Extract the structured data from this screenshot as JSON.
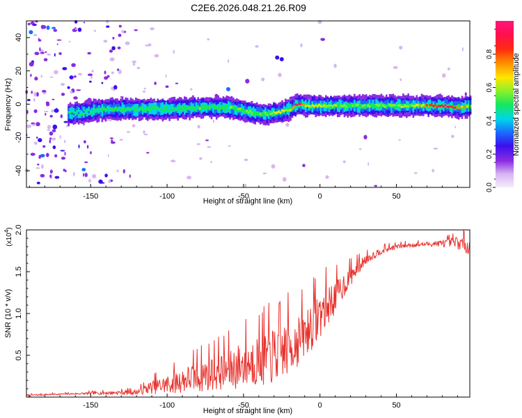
{
  "title": "C2E6.2026.048.21.26.R09",
  "chart_data": [
    {
      "type": "heatmap",
      "title": "C2E6.2026.048.21.26.R09",
      "xlabel": "Height of straight line (km)",
      "ylabel": "Frequency (Hz)",
      "xlim": [
        -192,
        98
      ],
      "ylim": [
        -50,
        50
      ],
      "xticks": [
        -150,
        -100,
        -50,
        0,
        50
      ],
      "yticks": [
        -40,
        -20,
        0,
        20,
        40
      ],
      "colorbar": {
        "label": "Normalized spectral amplitude",
        "range": [
          0.0,
          1.0
        ],
        "ticks": [
          0.0,
          0.2,
          0.4,
          0.6,
          0.8
        ],
        "tick_labels": [
          "0.0",
          "0.2",
          "0.4",
          "0.6",
          "0.8"
        ]
      },
      "ridge": {
        "height_km": [
          -165,
          -155,
          -140,
          -120,
          -100,
          -80,
          -60,
          -45,
          -35,
          -28,
          -20,
          -15,
          -10,
          0,
          10,
          20,
          40,
          60,
          80,
          92,
          98
        ],
        "freq_hz": [
          -6,
          -5,
          -3,
          -3,
          -3,
          -2,
          -2,
          -5,
          -6,
          -5,
          -3,
          0,
          -1,
          -1,
          -1,
          -1,
          -1,
          -1,
          -1,
          -2,
          -1
        ],
        "amplitude": [
          0.3,
          0.35,
          0.4,
          0.4,
          0.4,
          0.45,
          0.45,
          0.5,
          0.5,
          0.6,
          0.55,
          0.95,
          0.6,
          0.6,
          0.55,
          0.5,
          0.5,
          0.55,
          0.95,
          0.7,
          0.6
        ]
      }
    },
    {
      "type": "line",
      "xlabel": "Height of straight line (km)",
      "ylabel": "SNR (10 * v/v)",
      "scale_label": "(x10",
      "scale_exp": "4",
      "scale_close": ")",
      "xlim": [
        -192,
        98
      ],
      "ylim": [
        0,
        2.0
      ],
      "xticks": [
        -150,
        -100,
        -50,
        0,
        50
      ],
      "yticks": [
        0.5,
        1.0,
        1.5,
        2.0
      ],
      "ytick_labels": [
        "0.5",
        "1.0",
        "1.5",
        "2.0"
      ],
      "series": [
        {
          "name": "SNR",
          "color": "#e8322d",
          "x": [
            -192,
            -180,
            -160,
            -140,
            -120,
            -110,
            -100,
            -90,
            -80,
            -70,
            -60,
            -50,
            -40,
            -30,
            -20,
            -10,
            0,
            10,
            20,
            30,
            40,
            50,
            60,
            70,
            80,
            90,
            98
          ],
          "y_mean": [
            0.02,
            0.03,
            0.04,
            0.05,
            0.06,
            0.12,
            0.15,
            0.2,
            0.25,
            0.3,
            0.32,
            0.4,
            0.45,
            0.5,
            0.6,
            0.75,
            1.0,
            1.2,
            1.45,
            1.65,
            1.75,
            1.8,
            1.82,
            1.83,
            1.84,
            1.85,
            1.8
          ],
          "y_spread": [
            0.01,
            0.01,
            0.01,
            0.02,
            0.03,
            0.08,
            0.12,
            0.15,
            0.2,
            0.22,
            0.25,
            0.3,
            0.32,
            0.35,
            0.35,
            0.3,
            0.3,
            0.2,
            0.12,
            0.06,
            0.04,
            0.03,
            0.03,
            0.03,
            0.04,
            0.08,
            0.1
          ]
        }
      ]
    }
  ],
  "colors": {
    "line": "#e8322d",
    "axis": "#000000"
  }
}
